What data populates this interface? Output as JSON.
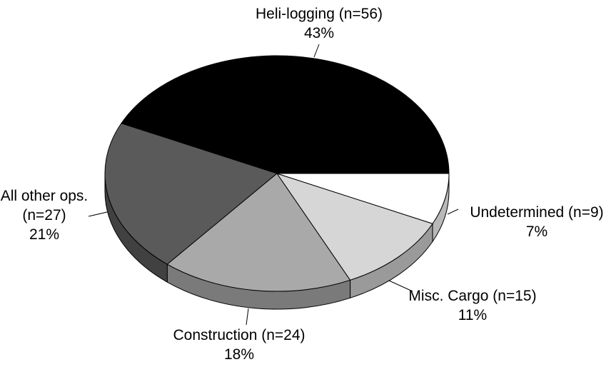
{
  "chart_data": {
    "type": "pie",
    "categories": [
      "Heli-logging (n=56)",
      "All other ops. (n=27)",
      "Construction (n=24)",
      "Misc. Cargo (n=15)",
      "Undetermined (n=9)"
    ],
    "values": [
      43,
      21,
      18,
      11,
      7
    ],
    "value_labels": [
      "43%",
      "21%",
      "18%",
      "11%",
      "7%"
    ],
    "colors": [
      "#000000",
      "#5a5a5a",
      "#a9a9a9",
      "#d6d6d6",
      "#ffffff"
    ]
  }
}
